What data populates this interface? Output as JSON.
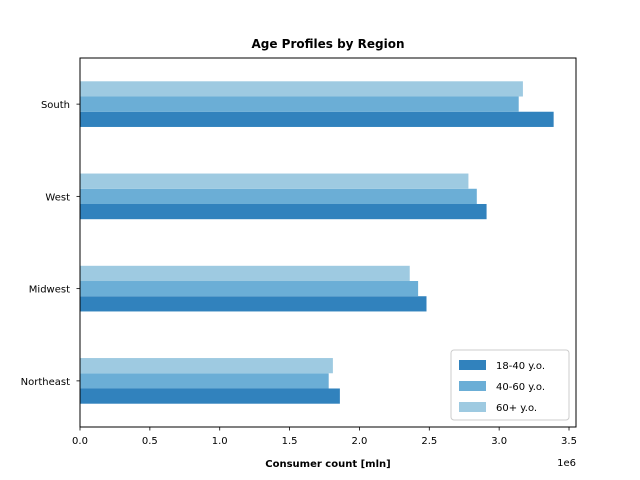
{
  "chart_data": {
    "type": "bar",
    "orientation": "horizontal",
    "title": "Age Profiles by Region",
    "xlabel": "Consumer count [mln]",
    "ylabel": "",
    "x_offset_text": "1e6",
    "xlim": [
      0,
      3550000
    ],
    "x_ticks": [
      0,
      500000,
      1000000,
      1500000,
      2000000,
      2500000,
      3000000,
      3500000
    ],
    "x_tick_labels": [
      "0.0",
      "0.5",
      "1.0",
      "1.5",
      "2.0",
      "2.5",
      "3.0",
      "3.5"
    ],
    "categories": [
      "Northeast",
      "Midwest",
      "West",
      "South"
    ],
    "series": [
      {
        "name": "18-40 y.o.",
        "color": "#3182bd",
        "values": [
          1860000,
          2480000,
          2910000,
          3390000
        ]
      },
      {
        "name": "40-60 y.o.",
        "color": "#6baed6",
        "values": [
          1780000,
          2420000,
          2840000,
          3140000
        ]
      },
      {
        "name": "60+ y.o.",
        "color": "#9ecae1",
        "values": [
          1810000,
          2360000,
          2780000,
          3170000
        ]
      }
    ],
    "legend_position": "lower-right",
    "grid": false
  }
}
